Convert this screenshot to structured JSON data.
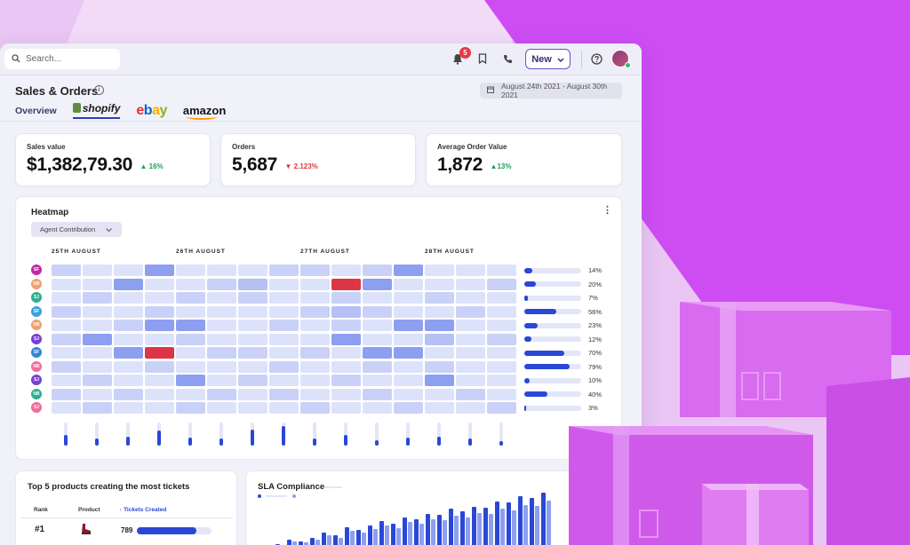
{
  "topbar": {
    "search_placeholder": "Search...",
    "notification_count": "5",
    "new_label": "New"
  },
  "page": {
    "title": "Sales & Orders",
    "date_range": "August 24th 2021 - August 30th 2021"
  },
  "tabs": {
    "overview": "Overview",
    "shopify": "shopify",
    "ebay": [
      "e",
      "b",
      "a",
      "y"
    ],
    "amazon": "amazon"
  },
  "kpis": [
    {
      "label": "Sales value",
      "value": "$1,382,79.30",
      "delta": "16%",
      "direction": "up"
    },
    {
      "label": "Orders",
      "value": "5,687",
      "delta": "2.123%",
      "direction": "down"
    },
    {
      "label": "Average Order Value",
      "value": "1,872",
      "delta": "13%",
      "direction": "up"
    }
  ],
  "heatmap": {
    "title": "Heatmap",
    "dropdown": "Agent Contribution",
    "date_labels": [
      "25TH AUGUST",
      "26TH AUGUST",
      "27TH AUGUST",
      "28TH AUGUST"
    ],
    "rows": [
      {
        "initials": "SF",
        "color": "#c02aa8",
        "pct": "14%",
        "fill": 0.14
      },
      {
        "initials": "NB",
        "color": "#f2a06b",
        "pct": "20%",
        "fill": 0.2
      },
      {
        "initials": "SJ",
        "color": "#2fae8e",
        "pct": "7%",
        "fill": 0.07
      },
      {
        "initials": "SF",
        "color": "#3aa0e0",
        "pct": "56%",
        "fill": 0.56
      },
      {
        "initials": "NB",
        "color": "#f2a06b",
        "pct": "23%",
        "fill": 0.23
      },
      {
        "initials": "SJ",
        "color": "#7a3fd6",
        "pct": "12%",
        "fill": 0.12
      },
      {
        "initials": "SF",
        "color": "#2b88d8",
        "pct": "70%",
        "fill": 0.7
      },
      {
        "initials": "NB",
        "color": "#f06c9b",
        "pct": "79%",
        "fill": 0.79
      },
      {
        "initials": "SJ",
        "color": "#7a3fd6",
        "pct": "10%",
        "fill": 0.1
      },
      {
        "initials": "NB",
        "color": "#2fae8e",
        "pct": "40%",
        "fill": 0.4
      },
      {
        "initials": "SJ",
        "color": "#f06c9b",
        "pct": "3%",
        "fill": 0.03
      }
    ],
    "cells": [
      [
        1,
        0,
        0,
        3,
        0,
        0,
        0,
        1,
        1,
        0,
        1,
        3,
        0,
        0,
        0
      ],
      [
        0,
        0,
        3,
        0,
        0,
        1,
        2,
        0,
        0,
        4,
        3,
        0,
        0,
        0,
        1
      ],
      [
        0,
        1,
        0,
        0,
        1,
        0,
        1,
        0,
        0,
        1,
        0,
        0,
        1,
        0,
        0
      ],
      [
        1,
        0,
        0,
        1,
        0,
        0,
        0,
        0,
        1,
        2,
        1,
        0,
        0,
        1,
        0
      ],
      [
        0,
        0,
        1,
        3,
        3,
        0,
        0,
        1,
        0,
        1,
        0,
        3,
        3,
        0,
        0
      ],
      [
        1,
        3,
        0,
        0,
        1,
        0,
        0,
        0,
        0,
        3,
        0,
        0,
        2,
        0,
        1
      ],
      [
        0,
        0,
        3,
        4,
        0,
        1,
        1,
        0,
        1,
        0,
        3,
        3,
        0,
        0,
        0
      ],
      [
        1,
        0,
        0,
        1,
        0,
        0,
        0,
        1,
        0,
        0,
        1,
        0,
        1,
        0,
        0
      ],
      [
        0,
        1,
        0,
        0,
        3,
        0,
        1,
        0,
        0,
        1,
        0,
        0,
        3,
        0,
        0
      ],
      [
        1,
        0,
        1,
        0,
        0,
        1,
        0,
        1,
        0,
        0,
        1,
        0,
        0,
        1,
        0
      ],
      [
        0,
        1,
        0,
        0,
        1,
        0,
        0,
        0,
        1,
        0,
        0,
        1,
        0,
        0,
        1
      ]
    ],
    "column_levels": [
      0.45,
      0.3,
      0.4,
      0.65,
      0.35,
      0.3,
      0.7,
      0.85,
      0.3,
      0.45,
      0.25,
      0.35,
      0.4,
      0.3,
      0.2
    ]
  },
  "products": {
    "title": "Top 5 products creating the most tickets",
    "col_rank": "Rank",
    "col_product": "Product",
    "col_tickets": "Tickets Created",
    "rows": [
      {
        "rank": "#1",
        "count": "789",
        "fill": 0.8
      }
    ]
  },
  "sla": {
    "title": "SLA Compliance",
    "bars": [
      0.08,
      0.12,
      0.18,
      0.16,
      0.22,
      0.3,
      0.26,
      0.38,
      0.35,
      0.42,
      0.48,
      0.44,
      0.55,
      0.52,
      0.6,
      0.58,
      0.68,
      0.64,
      0.72,
      0.7,
      0.8,
      0.78,
      0.88,
      0.86,
      0.95
    ]
  },
  "colors": {
    "accent": "#2a48d6",
    "heat_levels": [
      "#dde2fb",
      "#c9d1f8",
      "#b6c0f5",
      "#8d9ff0",
      "#dc3545"
    ]
  }
}
